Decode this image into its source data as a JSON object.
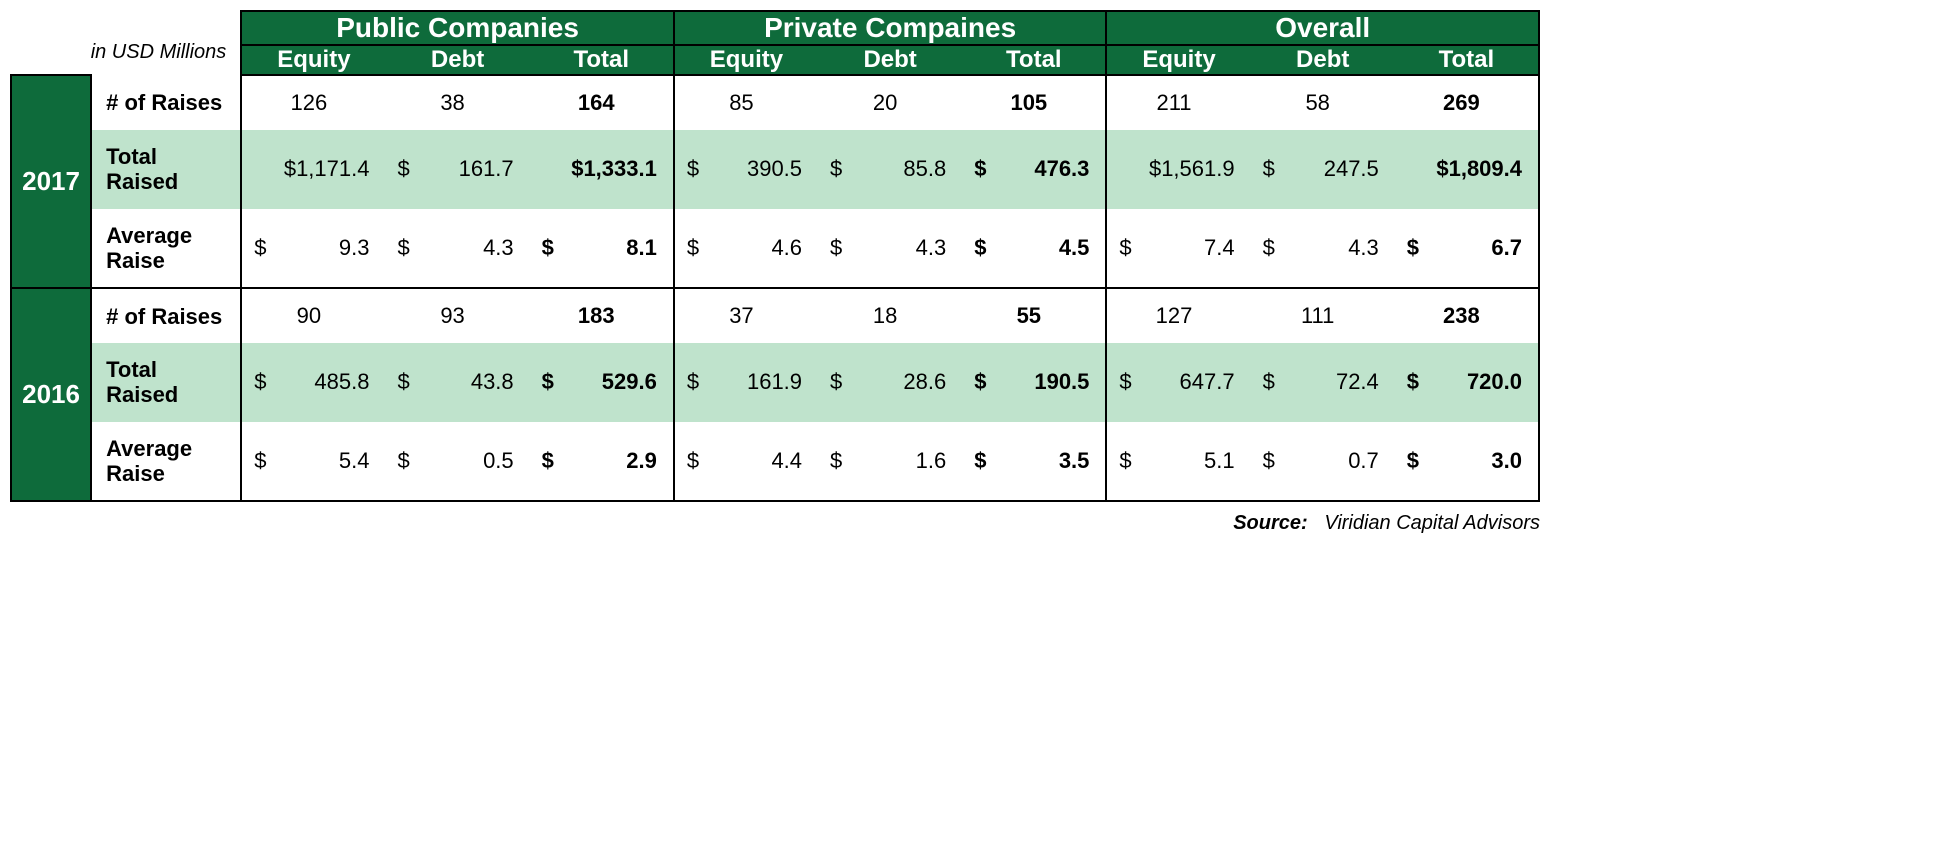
{
  "colors": {
    "header_bg": "#0e6b3b",
    "header_text": "#ffffff",
    "row_highlight": "#bfe3cc",
    "row_plain": "#ffffff",
    "border": "#000000"
  },
  "fonts": {
    "family": "Arial",
    "group_header_size_pt": 21,
    "sub_header_size_pt": 18,
    "body_size_pt": 16,
    "year_size_pt": 20,
    "rowlabel_size_pt": 16,
    "source_size_pt": 15
  },
  "unit_note": "in USD Millions",
  "group_headers": [
    "Public Companies",
    "Private Compaines",
    "Overall"
  ],
  "sub_headers": [
    "Equity",
    "Debt",
    "Total"
  ],
  "row_labels": [
    "# of Raises",
    "Total Raised",
    "Average Raise"
  ],
  "years": [
    {
      "year": "2017",
      "rows": [
        {
          "label_key": 0,
          "highlight": false,
          "cells": [
            {
              "v": "126",
              "center": true
            },
            {
              "v": "38",
              "center": true
            },
            {
              "v": "164",
              "center": true,
              "bold": true
            },
            {
              "v": "85",
              "center": true
            },
            {
              "v": "20",
              "center": true
            },
            {
              "v": "105",
              "center": true,
              "bold": true
            },
            {
              "v": "211",
              "center": true
            },
            {
              "v": "58",
              "center": true
            },
            {
              "v": "269",
              "center": true,
              "bold": true
            }
          ]
        },
        {
          "label_key": 1,
          "highlight": true,
          "cells": [
            {
              "d": true,
              "v": "$1,171.4"
            },
            {
              "d": true,
              "v": "161.7",
              "ds": true
            },
            {
              "d": true,
              "v": "$1,333.1",
              "bold": true
            },
            {
              "d": true,
              "v": "390.5",
              "ds": true
            },
            {
              "d": true,
              "v": "85.8",
              "ds": true
            },
            {
              "d": true,
              "v": "476.3",
              "ds": true,
              "bold": true
            },
            {
              "d": true,
              "v": "$1,561.9"
            },
            {
              "d": true,
              "v": "247.5",
              "ds": true
            },
            {
              "d": true,
              "v": "$1,809.4",
              "bold": true
            }
          ]
        },
        {
          "label_key": 2,
          "highlight": false,
          "cells": [
            {
              "d": true,
              "v": "9.3",
              "ds": true
            },
            {
              "d": true,
              "v": "4.3",
              "ds": true
            },
            {
              "d": true,
              "v": "8.1",
              "ds": true,
              "bold": true
            },
            {
              "d": true,
              "v": "4.6",
              "ds": true
            },
            {
              "d": true,
              "v": "4.3",
              "ds": true
            },
            {
              "d": true,
              "v": "4.5",
              "ds": true,
              "bold": true
            },
            {
              "d": true,
              "v": "7.4",
              "ds": true
            },
            {
              "d": true,
              "v": "4.3",
              "ds": true
            },
            {
              "d": true,
              "v": "6.7",
              "ds": true,
              "bold": true
            }
          ]
        }
      ]
    },
    {
      "year": "2016",
      "rows": [
        {
          "label_key": 0,
          "highlight": false,
          "cells": [
            {
              "v": "90",
              "center": true
            },
            {
              "v": "93",
              "center": true
            },
            {
              "v": "183",
              "center": true,
              "bold": true
            },
            {
              "v": "37",
              "center": true
            },
            {
              "v": "18",
              "center": true
            },
            {
              "v": "55",
              "center": true,
              "bold": true
            },
            {
              "v": "127",
              "center": true
            },
            {
              "v": "111",
              "center": true
            },
            {
              "v": "238",
              "center": true,
              "bold": true
            }
          ]
        },
        {
          "label_key": 1,
          "highlight": true,
          "cells": [
            {
              "d": true,
              "v": "485.8",
              "ds": true
            },
            {
              "d": true,
              "v": "43.8",
              "ds": true
            },
            {
              "d": true,
              "v": "529.6",
              "ds": true,
              "bold": true
            },
            {
              "d": true,
              "v": "161.9",
              "ds": true
            },
            {
              "d": true,
              "v": "28.6",
              "ds": true
            },
            {
              "d": true,
              "v": "190.5",
              "ds": true,
              "bold": true
            },
            {
              "d": true,
              "v": "647.7",
              "ds": true
            },
            {
              "d": true,
              "v": "72.4",
              "ds": true
            },
            {
              "d": true,
              "v": "720.0",
              "ds": true,
              "bold": true
            }
          ]
        },
        {
          "label_key": 2,
          "highlight": false,
          "cells": [
            {
              "d": true,
              "v": "5.4",
              "ds": true
            },
            {
              "d": true,
              "v": "0.5",
              "ds": true
            },
            {
              "d": true,
              "v": "2.9",
              "ds": true,
              "bold": true
            },
            {
              "d": true,
              "v": "4.4",
              "ds": true
            },
            {
              "d": true,
              "v": "1.6",
              "ds": true
            },
            {
              "d": true,
              "v": "3.5",
              "ds": true,
              "bold": true
            },
            {
              "d": true,
              "v": "5.1",
              "ds": true
            },
            {
              "d": true,
              "v": "0.7",
              "ds": true
            },
            {
              "d": true,
              "v": "3.0",
              "ds": true,
              "bold": true
            }
          ]
        }
      ]
    }
  ],
  "source_label": "Source:",
  "source_text": "Viridian Capital Advisors"
}
